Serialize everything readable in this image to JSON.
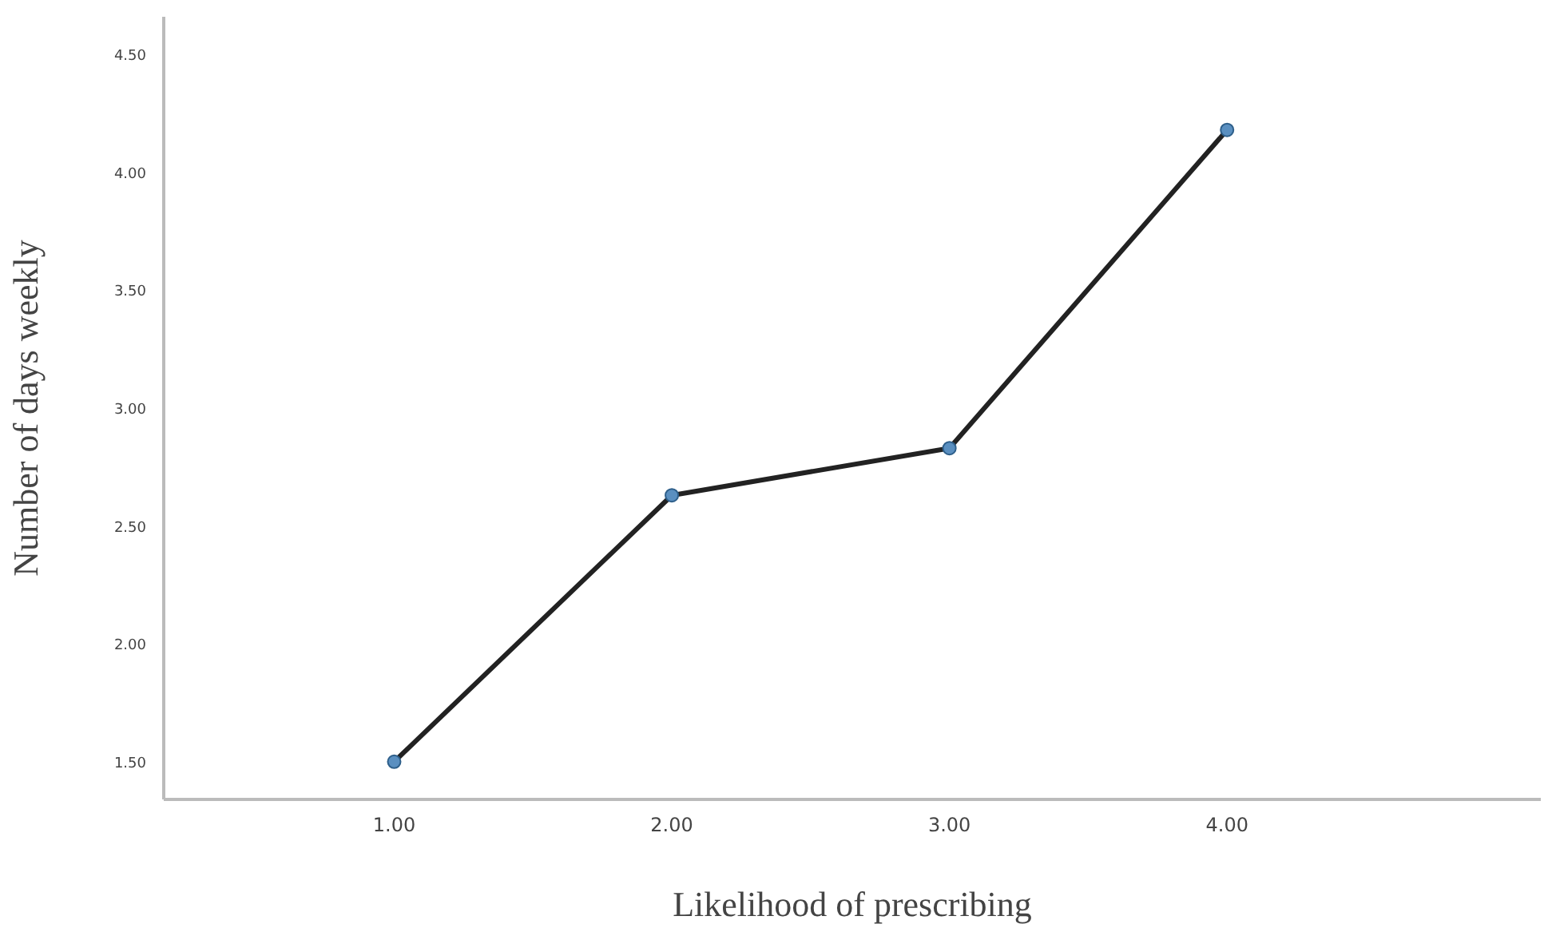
{
  "chart_data": {
    "type": "line",
    "xlabel": "Likelihood of prescribing",
    "ylabel": "Number of days weekly",
    "x": [
      1,
      2,
      3,
      4
    ],
    "series": [
      {
        "color": "#222222",
        "values": [
          1.5,
          2.63,
          2.83,
          4.18
        ]
      }
    ],
    "xlim": [
      0.17,
      5.13
    ],
    "xticks": [
      {
        "value": 1,
        "label": "1.00"
      },
      {
        "value": 2,
        "label": "2.00"
      },
      {
        "value": 3,
        "label": "3.00"
      },
      {
        "value": 4,
        "label": "4.00"
      }
    ],
    "ylim": [
      1.34,
      4.66
    ],
    "yticks": [
      {
        "value": 1.5,
        "label": "1.50"
      },
      {
        "value": 2,
        "label": "2.00"
      },
      {
        "value": 2.5,
        "label": "2.50"
      },
      {
        "value": 3,
        "label": "3.00"
      },
      {
        "value": 3.5,
        "label": "3.50"
      },
      {
        "value": 4,
        "label": "4.00"
      },
      {
        "value": 4.5,
        "label": "4.50"
      }
    ],
    "grid": false,
    "marker": "circle",
    "line_style": "solid"
  }
}
